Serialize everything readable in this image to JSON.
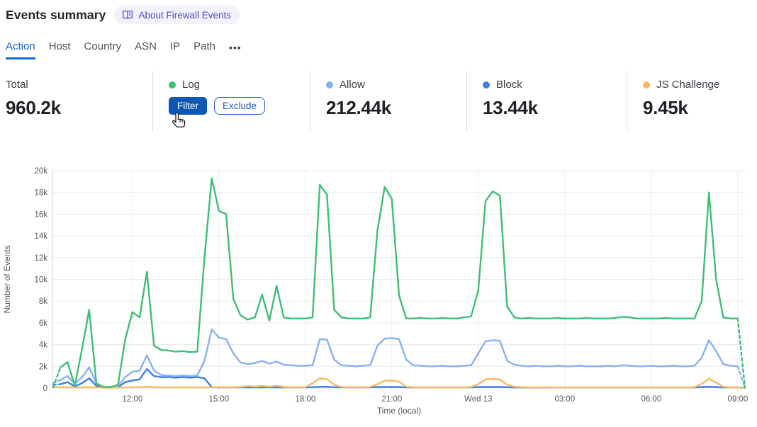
{
  "header": {
    "title": "Events summary",
    "about_link": "About Firewall Events"
  },
  "tabs": {
    "items": [
      "Action",
      "Host",
      "Country",
      "ASN",
      "IP",
      "Path"
    ],
    "active": "Action",
    "more_label": "•••"
  },
  "stats": {
    "total": {
      "label": "Total",
      "value": "960.2k"
    },
    "cards": [
      {
        "label": "Log",
        "color": "#3fbe76",
        "hovered": true,
        "filter_label": "Filter",
        "exclude_label": "Exclude"
      },
      {
        "label": "Allow",
        "color": "#86b1f2",
        "value": "212.44k"
      },
      {
        "label": "Block",
        "color": "#3e7ee6",
        "value": "13.44k"
      },
      {
        "label": "JS Challenge",
        "color": "#f6ba61",
        "value": "9.45k"
      }
    ]
  },
  "icons": {
    "about": "book-icon",
    "more": "ellipsis-icon",
    "cursor": "hand-cursor-icon"
  },
  "chart_data": {
    "type": "line",
    "title": "",
    "xlabel": "Time (local)",
    "ylabel": "Number of Events",
    "ylim": [
      0,
      20000
    ],
    "ymax_k": 20,
    "grid": true,
    "values_unit": "thousands of events",
    "y_ticks": [
      "0",
      "2k",
      "4k",
      "6k",
      "8k",
      "10k",
      "12k",
      "14k",
      "16k",
      "18k",
      "20k"
    ],
    "x_ticks": [
      {
        "label": "12:00",
        "t": 12
      },
      {
        "label": "15:00",
        "t": 15
      },
      {
        "label": "18:00",
        "t": 18
      },
      {
        "label": "21:00",
        "t": 21
      },
      {
        "label": "Wed 13",
        "t": 24
      },
      {
        "label": "03:00",
        "t": 27
      },
      {
        "label": "06:00",
        "t": 30
      },
      {
        "label": "09:00",
        "t": 33
      }
    ],
    "t_start": 9.25,
    "t_end": 33.25,
    "t_step": 0.25,
    "series": [
      {
        "key": "block",
        "name": "Block",
        "color": "#3e7ee6",
        "dashed_first": true,
        "dashed_last": false,
        "values_k": [
          0.3,
          0.35,
          0.55,
          0.15,
          0.45,
          0.9,
          0.2,
          0.05,
          0.03,
          0.1,
          0.55,
          0.7,
          0.8,
          1.75,
          1.1,
          1.0,
          1.0,
          0.95,
          1.0,
          0.95,
          1.0,
          0.9,
          0.08,
          0.06,
          0.06,
          0.06,
          0.06,
          0.06,
          0.06,
          0.06,
          0.06,
          0.06,
          0.06,
          0.06,
          0.06,
          0.06,
          0.08,
          0.12,
          0.12,
          0.08,
          0.06,
          0.06,
          0.06,
          0.06,
          0.06,
          0.1,
          0.1,
          0.1,
          0.1,
          0.06,
          0.06,
          0.06,
          0.06,
          0.06,
          0.06,
          0.06,
          0.06,
          0.06,
          0.06,
          0.1,
          0.1,
          0.1,
          0.1,
          0.08,
          0.05,
          0.05,
          0.05,
          0.05,
          0.05,
          0.05,
          0.05,
          0.05,
          0.05,
          0.05,
          0.05,
          0.05,
          0.05,
          0.05,
          0.05,
          0.05,
          0.05,
          0.05,
          0.05,
          0.05,
          0.05,
          0.05,
          0.05,
          0.05,
          0.05,
          0.05,
          0.1,
          0.12,
          0.1,
          0.06,
          0.06,
          0.06,
          0.02
        ]
      },
      {
        "key": "allow",
        "name": "Allow",
        "color": "#86b1f2",
        "dashed_first": true,
        "dashed_last": true,
        "values_k": [
          0.45,
          0.75,
          1.1,
          0.4,
          1.0,
          1.9,
          0.45,
          0.1,
          0.05,
          0.2,
          1.0,
          1.5,
          1.6,
          3.0,
          1.6,
          1.2,
          1.15,
          1.1,
          1.15,
          1.1,
          1.15,
          2.5,
          5.4,
          4.65,
          4.5,
          3.2,
          2.35,
          2.2,
          2.3,
          2.5,
          2.25,
          2.45,
          2.15,
          2.1,
          2.05,
          2.05,
          2.1,
          4.5,
          4.45,
          2.6,
          2.1,
          2.05,
          2.0,
          2.05,
          2.1,
          3.9,
          4.55,
          4.6,
          4.5,
          2.6,
          2.1,
          2.05,
          2.0,
          2.0,
          2.05,
          2.0,
          2.0,
          2.05,
          2.1,
          3.2,
          4.3,
          4.4,
          4.35,
          2.5,
          2.15,
          2.05,
          2.0,
          2.05,
          2.0,
          2.0,
          2.05,
          2.0,
          2.0,
          2.05,
          2.0,
          2.0,
          2.0,
          2.05,
          2.0,
          2.1,
          2.05,
          2.0,
          2.0,
          2.05,
          2.0,
          2.0,
          2.05,
          2.0,
          2.0,
          2.05,
          2.8,
          4.4,
          3.4,
          2.2,
          2.05,
          2.0,
          0.05
        ]
      },
      {
        "key": "js_challenge",
        "name": "JS Challenge",
        "color": "#f6ba61",
        "dashed_first": false,
        "dashed_last": false,
        "values_k": [
          0.1,
          0.06,
          0.08,
          0.05,
          0.06,
          0.08,
          0.05,
          0.04,
          0.04,
          0.05,
          0.06,
          0.08,
          0.08,
          0.12,
          0.08,
          0.06,
          0.05,
          0.05,
          0.05,
          0.05,
          0.05,
          0.06,
          0.08,
          0.08,
          0.07,
          0.06,
          0.1,
          0.18,
          0.14,
          0.2,
          0.12,
          0.22,
          0.1,
          0.07,
          0.06,
          0.08,
          0.45,
          0.9,
          0.82,
          0.3,
          0.1,
          0.07,
          0.06,
          0.06,
          0.1,
          0.35,
          0.68,
          0.7,
          0.6,
          0.12,
          0.07,
          0.05,
          0.05,
          0.05,
          0.05,
          0.05,
          0.05,
          0.05,
          0.1,
          0.35,
          0.8,
          0.85,
          0.78,
          0.3,
          0.12,
          0.08,
          0.06,
          0.06,
          0.06,
          0.06,
          0.05,
          0.05,
          0.05,
          0.05,
          0.05,
          0.05,
          0.05,
          0.05,
          0.05,
          0.05,
          0.05,
          0.05,
          0.05,
          0.05,
          0.05,
          0.05,
          0.05,
          0.05,
          0.05,
          0.08,
          0.4,
          0.85,
          0.5,
          0.12,
          0.06,
          0.05,
          0.02
        ]
      },
      {
        "key": "log",
        "name": "Log",
        "color": "#3fbe76",
        "dashed_first": true,
        "dashed_last": true,
        "values_k": [
          0.05,
          1.9,
          2.4,
          0.2,
          3.6,
          7.2,
          0.4,
          0.1,
          0.1,
          0.3,
          4.5,
          7.0,
          6.5,
          10.7,
          3.9,
          3.5,
          3.45,
          3.35,
          3.4,
          3.3,
          3.35,
          12.0,
          19.3,
          16.3,
          16.0,
          8.2,
          6.7,
          6.3,
          6.5,
          8.6,
          6.2,
          9.4,
          6.5,
          6.4,
          6.4,
          6.4,
          6.5,
          18.7,
          17.8,
          7.2,
          6.5,
          6.4,
          6.4,
          6.4,
          6.5,
          14.5,
          18.5,
          17.4,
          8.5,
          6.4,
          6.4,
          6.45,
          6.4,
          6.4,
          6.45,
          6.4,
          6.4,
          6.5,
          6.6,
          9.0,
          17.2,
          18.1,
          17.7,
          7.5,
          6.5,
          6.4,
          6.45,
          6.4,
          6.4,
          6.4,
          6.45,
          6.4,
          6.4,
          6.4,
          6.45,
          6.4,
          6.4,
          6.4,
          6.45,
          6.55,
          6.5,
          6.4,
          6.4,
          6.4,
          6.4,
          6.45,
          6.4,
          6.4,
          6.4,
          6.4,
          8.0,
          18.0,
          10.0,
          6.5,
          6.4,
          6.4,
          0.05
        ]
      }
    ]
  }
}
